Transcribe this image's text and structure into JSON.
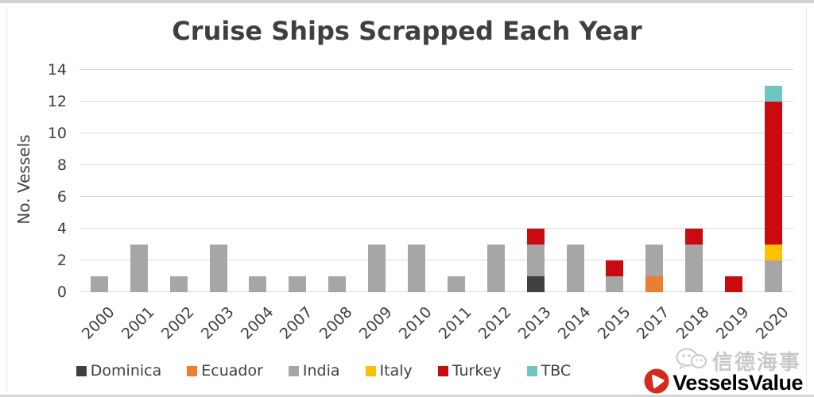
{
  "chart_data": {
    "type": "bar",
    "stacked": true,
    "title": "Cruise Ships Scrapped Each Year",
    "xlabel": "",
    "ylabel": "No. Vessels",
    "ylim": [
      0,
      14
    ],
    "ytick_step": 2,
    "grid": "horizontal",
    "legend_position": "bottom",
    "categories": [
      "2000",
      "2001",
      "2002",
      "2003",
      "2004",
      "2007",
      "2008",
      "2009",
      "2010",
      "2011",
      "2012",
      "2013",
      "2014",
      "2015",
      "2017",
      "2018",
      "2019",
      "2020"
    ],
    "series": [
      {
        "name": "Dominica",
        "color": "#404040",
        "values": [
          0,
          0,
          0,
          0,
          0,
          0,
          0,
          0,
          0,
          0,
          0,
          1,
          0,
          0,
          0,
          0,
          0,
          0
        ]
      },
      {
        "name": "Ecuador",
        "color": "#ED7D31",
        "values": [
          0,
          0,
          0,
          0,
          0,
          0,
          0,
          0,
          0,
          0,
          0,
          0,
          0,
          0,
          1,
          0,
          0,
          0
        ]
      },
      {
        "name": "India",
        "color": "#A6A6A6",
        "values": [
          1,
          3,
          1,
          3,
          1,
          1,
          1,
          3,
          3,
          1,
          3,
          2,
          3,
          1,
          2,
          3,
          0,
          2
        ]
      },
      {
        "name": "Italy",
        "color": "#FFC000",
        "values": [
          0,
          0,
          0,
          0,
          0,
          0,
          0,
          0,
          0,
          0,
          0,
          0,
          0,
          0,
          0,
          0,
          0,
          1
        ]
      },
      {
        "name": "Turkey",
        "color": "#C90B0F",
        "values": [
          0,
          0,
          0,
          0,
          0,
          0,
          0,
          0,
          0,
          0,
          0,
          1,
          0,
          1,
          0,
          1,
          1,
          9
        ]
      },
      {
        "name": "TBC",
        "color": "#6EC6C2",
        "values": [
          0,
          0,
          0,
          0,
          0,
          0,
          0,
          0,
          0,
          0,
          0,
          0,
          0,
          0,
          0,
          0,
          0,
          1
        ]
      }
    ]
  },
  "branding": {
    "watermark": {
      "text": "信德海事",
      "icon": "chat-bubbles-icon",
      "color": "#C8C8C8"
    },
    "logo": {
      "text": "VesselsValue",
      "icon": "play-circle-icon",
      "color": "#D5281E"
    }
  }
}
